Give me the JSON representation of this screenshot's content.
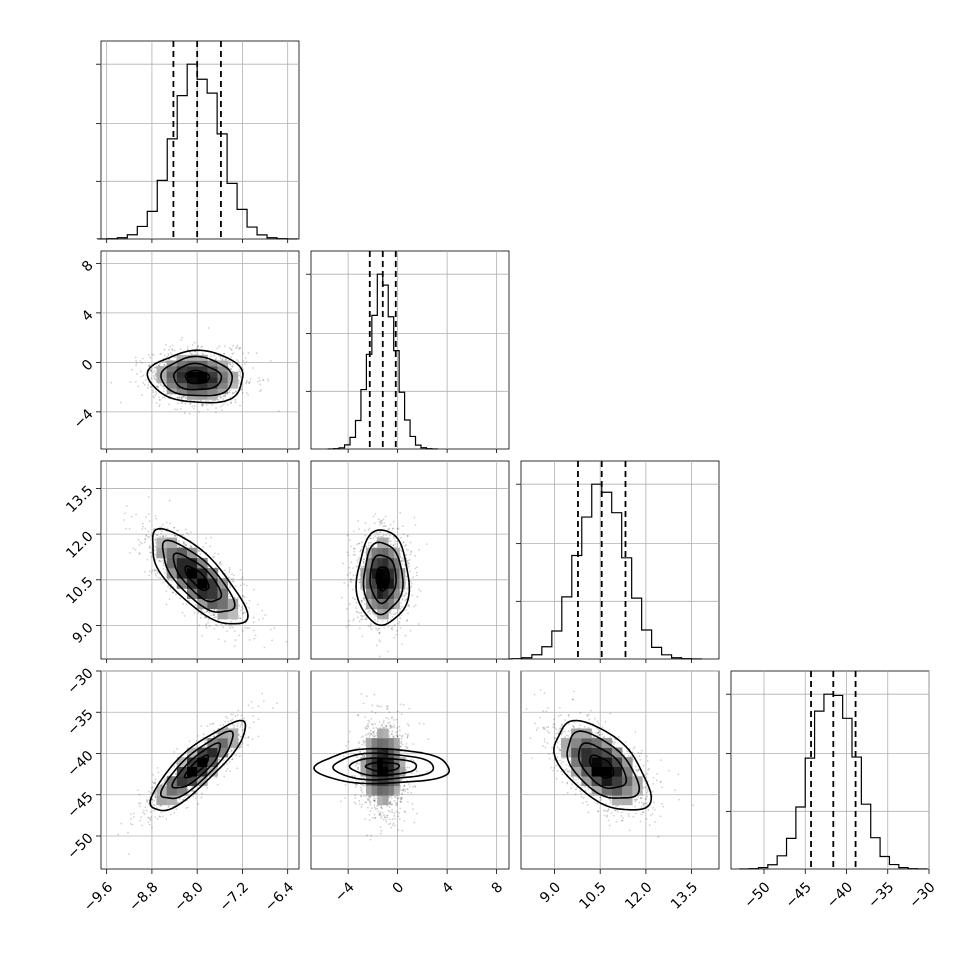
{
  "chart_data": {
    "type": "corner",
    "title": "",
    "grid": true,
    "parameters": [
      {
        "index": 0,
        "mean": -8.0,
        "sigma": 0.42,
        "range": [
          -9.7,
          -6.2
        ],
        "ticks": [
          -9.6,
          -8.8,
          -8.0,
          -7.2,
          -6.4
        ],
        "tick_labels": [
          "−9.6",
          "−8.8",
          "−8.0",
          "−7.2",
          "−6.4"
        ],
        "quantiles": [
          -8.42,
          -8.0,
          -7.58
        ]
      },
      {
        "index": 1,
        "mean": -1.2,
        "sigma": 1.05,
        "range": [
          -7.0,
          9.0
        ],
        "ticks": [
          -4,
          0,
          4,
          8
        ],
        "tick_labels": [
          "−4",
          "0",
          "4",
          "8"
        ],
        "quantiles": [
          -2.25,
          -1.2,
          -0.15
        ]
      },
      {
        "index": 2,
        "mean": 10.55,
        "sigma": 0.78,
        "range": [
          7.9,
          14.4
        ],
        "ticks": [
          9.0,
          10.5,
          12.0,
          13.5
        ],
        "tick_labels": [
          "9.0",
          "10.5",
          "12.0",
          "13.5"
        ],
        "quantiles": [
          9.77,
          10.55,
          11.33
        ]
      },
      {
        "index": 3,
        "mean": -41.6,
        "sigma": 2.7,
        "range": [
          -54.0,
          -30.0
        ],
        "ticks": [
          -50,
          -45,
          -40,
          -35,
          -30
        ],
        "tick_labels": [
          "−50",
          "−45",
          "−40",
          "−35",
          "−30"
        ],
        "quantiles": [
          -44.3,
          -41.6,
          -38.9
        ]
      }
    ],
    "correlations": [
      {
        "pair": [
          1,
          0
        ],
        "rho": -0.05
      },
      {
        "pair": [
          2,
          0
        ],
        "rho": -0.75
      },
      {
        "pair": [
          2,
          1
        ],
        "rho": 0.0
      },
      {
        "pair": [
          3,
          0
        ],
        "rho": 0.85
      },
      {
        "pair": [
          3,
          1
        ],
        "rho": 0.0
      },
      {
        "pair": [
          3,
          2
        ],
        "rho": -0.55
      }
    ],
    "histogram_bins": 20,
    "contour_levels": [
      0.5,
      1.0,
      1.5,
      2.0
    ]
  }
}
